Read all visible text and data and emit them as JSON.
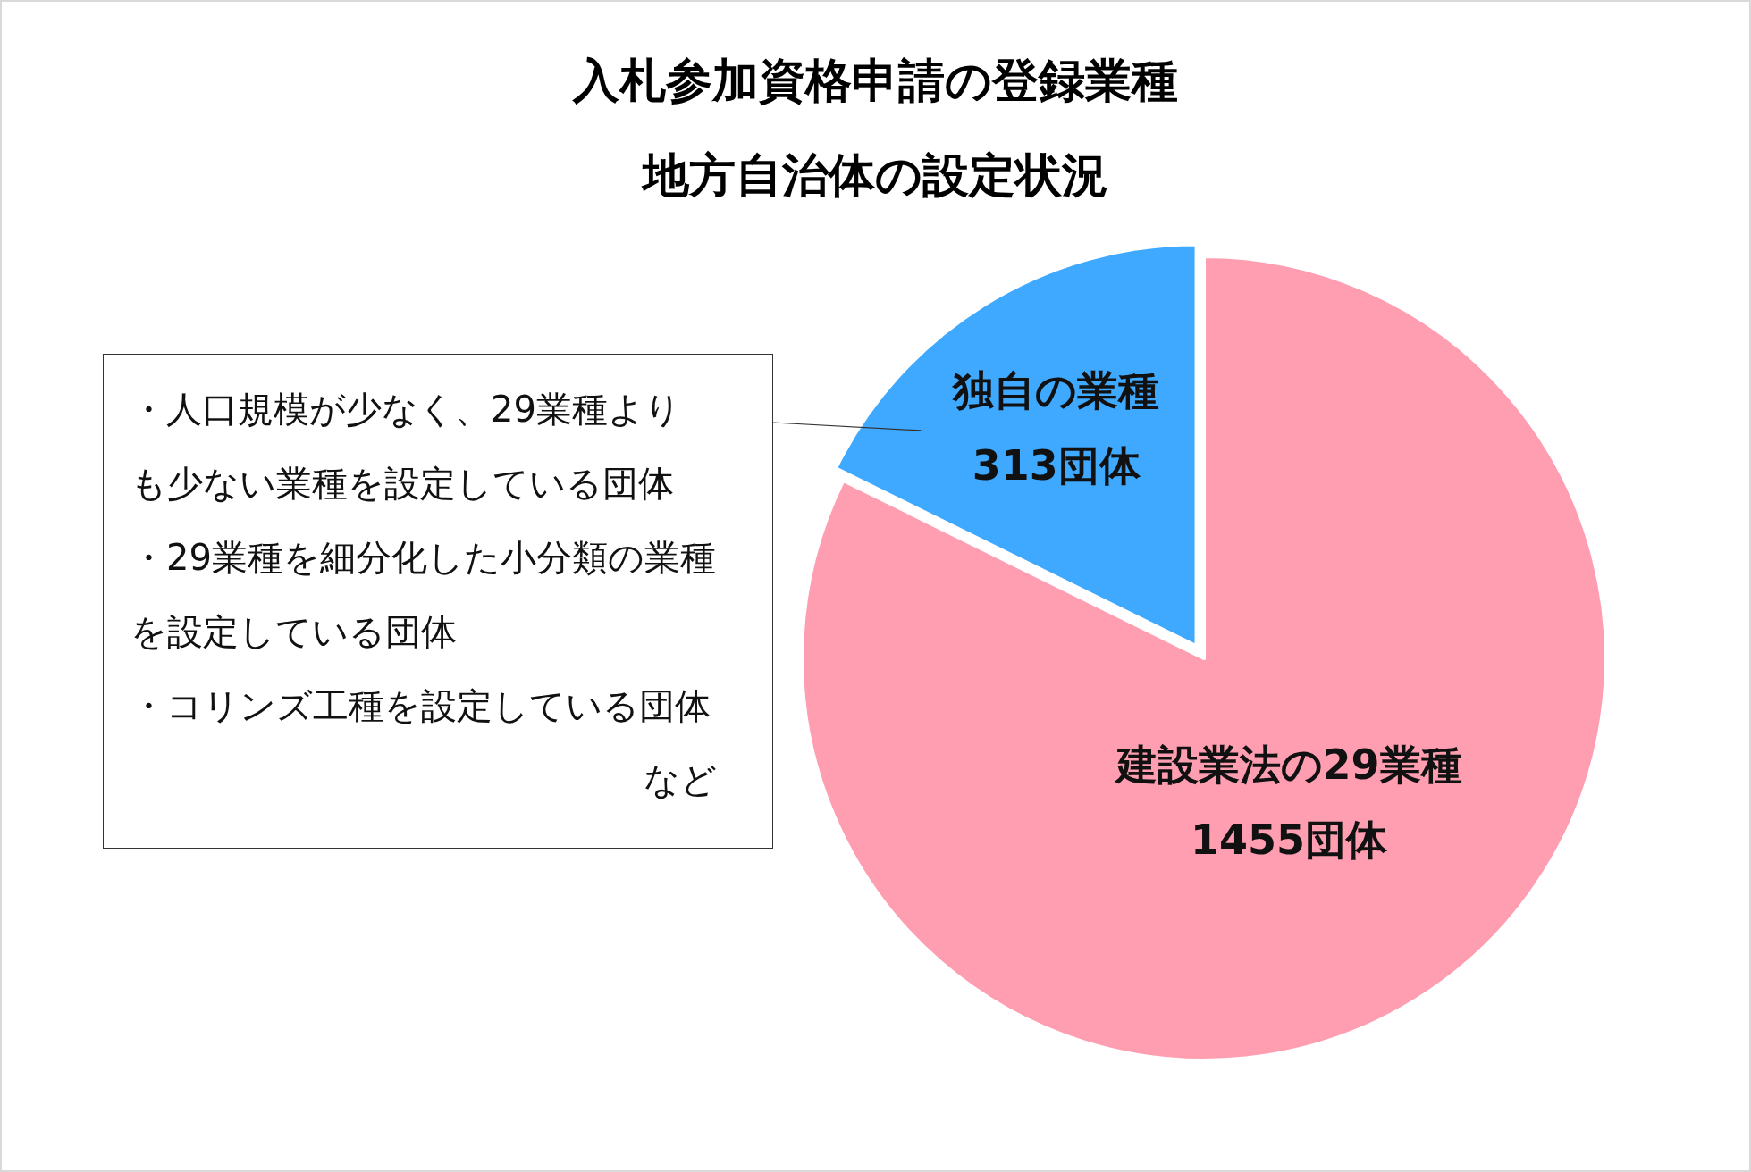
{
  "chart_data": {
    "type": "pie",
    "title": "入札参加資格申請の登録業種",
    "subtitle": "地方自治体の設定状況",
    "categories": [
      "建設業法の29業種",
      "独自の業種"
    ],
    "values": [
      1455,
      313
    ],
    "colors": [
      "#ff9eb0",
      "#3fa9ff"
    ],
    "value_labels": [
      "1455団体",
      "313団体"
    ],
    "annotations": [
      "・人口規模が少なく、29業種よりも少ない業種を設定している団体",
      "・29業種を細分化した小分類の業種を設定している団体",
      "・コリンズ工種を設定している団体",
      "など"
    ]
  }
}
